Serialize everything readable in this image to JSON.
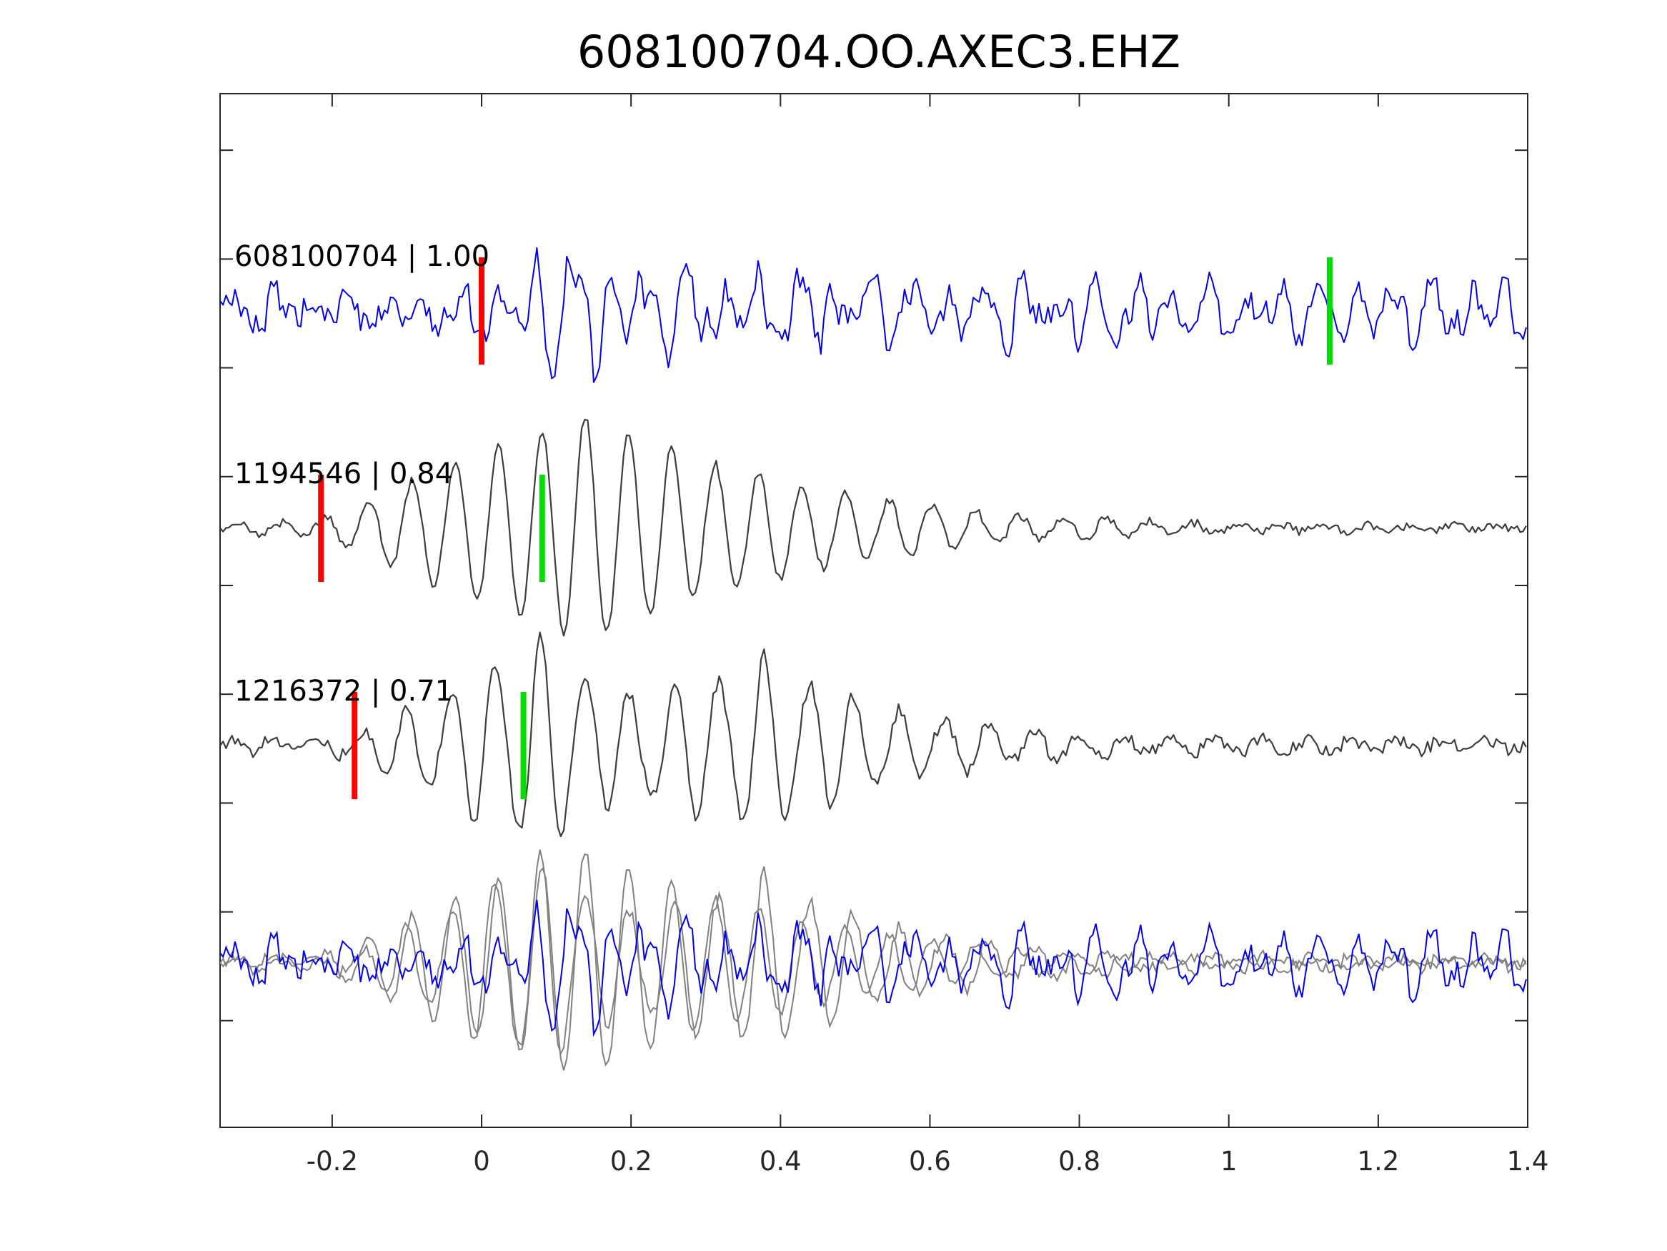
{
  "chart_data": {
    "type": "line",
    "title": "608100704.OO.AXEC3.EHZ",
    "xlabel": "",
    "ylabel": "",
    "xlim": [
      -0.35,
      1.4
    ],
    "x_ticks": [
      -0.2,
      0,
      0.2,
      0.4,
      0.6,
      0.8,
      1,
      1.2,
      1.4
    ],
    "x_tick_labels": [
      "-0.2",
      "0",
      "0.2",
      "0.4",
      "0.6",
      "0.8",
      "1",
      "1.2",
      "1.4"
    ],
    "y_tick_count": 9,
    "grid": false,
    "legend": "none",
    "sample_interval": 0.004,
    "colors": {
      "event_trace": "#0000ee",
      "template_trace": "#3c3c3c",
      "overlay_template": "#808080",
      "p_marker": "#ff0000",
      "s_marker": "#00dd00"
    },
    "traces": [
      {
        "label": "608100704 | 1.00",
        "id": "608100704",
        "cc": "1.00",
        "p_pick": 0.0,
        "s_pick": 1.135,
        "envelope": [
          [
            -0.35,
            0.22
          ],
          [
            -0.02,
            0.3
          ],
          [
            0.07,
            0.9
          ],
          [
            0.18,
            0.75
          ],
          [
            0.3,
            0.55
          ],
          [
            0.6,
            0.42
          ],
          [
            1.4,
            0.45
          ]
        ],
        "components": [
          {
            "f": 20,
            "w": 1.0
          },
          {
            "f": 13,
            "w": 0.5
          },
          {
            "f": 31,
            "w": 0.45
          },
          {
            "f": 43,
            "w": 0.3
          }
        ],
        "noise": 0.12
      },
      {
        "label": "1194546 | 0.84",
        "id": "1194546",
        "cc": "0.84",
        "p_pick": -0.215,
        "s_pick": 0.081,
        "envelope": [
          [
            -0.35,
            0.03
          ],
          [
            -0.22,
            0.07
          ],
          [
            -0.1,
            0.42
          ],
          [
            0.0,
            0.7
          ],
          [
            0.14,
            1.05
          ],
          [
            0.3,
            0.62
          ],
          [
            0.5,
            0.3
          ],
          [
            0.7,
            0.13
          ],
          [
            0.9,
            0.06
          ],
          [
            1.1,
            0.03
          ],
          [
            1.4,
            0.02
          ]
        ],
        "components": [
          {
            "f": 17.2,
            "w": 1.0
          }
        ],
        "noise": 0.04
      },
      {
        "label": "1216372 | 0.71",
        "id": "1216372",
        "cc": "0.71",
        "p_pick": -0.17,
        "s_pick": 0.056,
        "envelope": [
          [
            -0.35,
            0.04
          ],
          [
            -0.17,
            0.1
          ],
          [
            -0.05,
            0.55
          ],
          [
            0.07,
            1.05
          ],
          [
            0.2,
            0.5
          ],
          [
            0.38,
            0.85
          ],
          [
            0.55,
            0.35
          ],
          [
            0.7,
            0.2
          ],
          [
            0.9,
            0.08
          ],
          [
            1.4,
            0.05
          ]
        ],
        "components": [
          {
            "f": 16.6,
            "w": 1.0
          },
          {
            "f": 27,
            "w": 0.12
          }
        ],
        "noise": 0.06
      }
    ]
  }
}
